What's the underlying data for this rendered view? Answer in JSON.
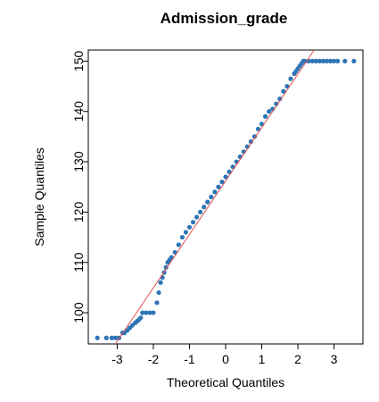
{
  "chart_data": {
    "type": "scatter",
    "title": "Admission_grade",
    "xlabel": "Theoretical Quantiles",
    "ylabel": "Sample Quantiles",
    "xlim": [
      -3.8,
      3.8
    ],
    "ylim": [
      93.8,
      152.2
    ],
    "x_ticks": [
      -3,
      -2,
      -1,
      0,
      1,
      2,
      3
    ],
    "x_tick_labels": [
      "-3",
      "-2",
      "-1",
      "0",
      "1",
      "2",
      "3"
    ],
    "y_ticks": [
      100,
      110,
      120,
      130,
      140,
      150
    ],
    "y_tick_labels": [
      "100",
      "110",
      "120",
      "130",
      "140",
      "150"
    ],
    "grid": false,
    "point_color": "#2E75B6",
    "reference_line": {
      "color": "#E05050",
      "from": [
        -3.05,
        93.8
      ],
      "to": [
        2.45,
        152.2
      ]
    },
    "points": {
      "x": [
        -3.55,
        -3.3,
        -3.15,
        -3.05,
        -2.95,
        -2.85,
        -2.8,
        -2.72,
        -2.65,
        -2.58,
        -2.5,
        -2.45,
        -2.4,
        -2.35,
        -2.3,
        -2.2,
        -2.1,
        -2.0,
        -1.9,
        -1.85,
        -1.8,
        -1.75,
        -1.7,
        -1.65,
        -1.6,
        -1.55,
        -1.5,
        -1.4,
        -1.3,
        -1.2,
        -1.1,
        -1.0,
        -0.9,
        -0.8,
        -0.7,
        -0.6,
        -0.5,
        -0.4,
        -0.3,
        -0.2,
        -0.1,
        0.0,
        0.1,
        0.2,
        0.3,
        0.4,
        0.5,
        0.6,
        0.7,
        0.8,
        0.9,
        1.0,
        1.1,
        1.2,
        1.3,
        1.4,
        1.5,
        1.6,
        1.7,
        1.8,
        1.9,
        1.95,
        2.0,
        2.05,
        2.1,
        2.15,
        2.2,
        2.3,
        2.4,
        2.5,
        2.6,
        2.7,
        2.8,
        2.9,
        3.0,
        3.1,
        3.3,
        3.55
      ],
      "y": [
        95,
        95,
        95,
        95,
        95,
        96,
        96,
        96.5,
        97,
        97.5,
        98,
        98.3,
        98.6,
        99,
        100,
        100,
        100,
        100,
        102,
        104,
        106,
        107,
        108,
        109,
        110,
        110.5,
        111,
        112,
        113.5,
        115,
        116,
        117,
        118,
        119,
        120,
        121,
        122,
        123,
        124,
        125,
        126,
        127,
        128,
        129,
        130,
        131,
        132,
        133,
        134,
        135,
        136.5,
        137.5,
        139,
        140,
        140.5,
        141.5,
        142.5,
        144,
        145,
        146.5,
        147.5,
        148,
        148.5,
        149,
        149.5,
        150,
        150,
        150,
        150,
        150,
        150,
        150,
        150,
        150,
        150,
        150,
        150,
        150
      ]
    }
  }
}
